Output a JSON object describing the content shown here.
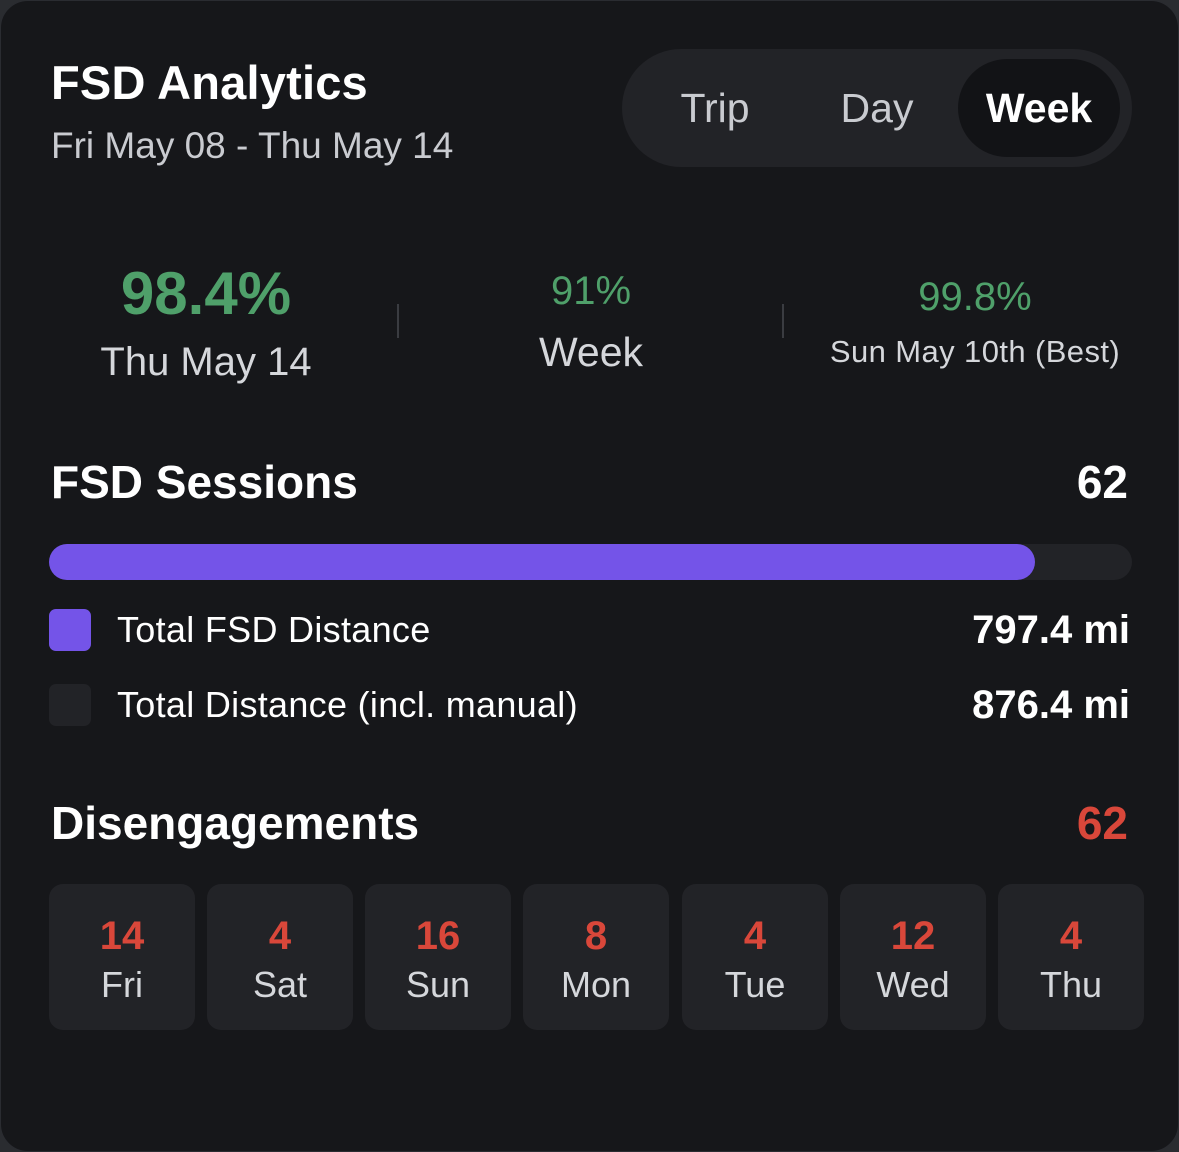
{
  "header": {
    "title": "FSD Analytics",
    "date_range": "Fri May 08 - Thu May 14"
  },
  "range_tabs": [
    {
      "label": "Trip",
      "active": false
    },
    {
      "label": "Day",
      "active": false
    },
    {
      "label": "Week",
      "active": true
    }
  ],
  "stats": [
    {
      "value": "98.4%",
      "label": "Thu May 14"
    },
    {
      "value": "91%",
      "label": "Week"
    },
    {
      "value": "99.8%",
      "label": "Sun May 10th (Best)"
    }
  ],
  "sessions": {
    "title": "FSD Sessions",
    "count": "62",
    "progress_fraction": 0.91,
    "legend": [
      {
        "label": "Total FSD Distance",
        "value": "797.4 mi",
        "color": "#7454e8"
      },
      {
        "label": "Total Distance (incl. manual)",
        "value": "876.4 mi",
        "color": "#222327"
      }
    ]
  },
  "disengagements": {
    "title": "Disengagements",
    "count": "62",
    "days": [
      {
        "count": "14",
        "day": "Fri"
      },
      {
        "count": "4",
        "day": "Sat"
      },
      {
        "count": "16",
        "day": "Sun"
      },
      {
        "count": "8",
        "day": "Mon"
      },
      {
        "count": "4",
        "day": "Tue"
      },
      {
        "count": "12",
        "day": "Wed"
      },
      {
        "count": "4",
        "day": "Thu"
      }
    ]
  },
  "colors": {
    "accent_green": "#4fa06a",
    "accent_purple": "#7454e8",
    "accent_red": "#d9473a",
    "background": "#16171a"
  }
}
